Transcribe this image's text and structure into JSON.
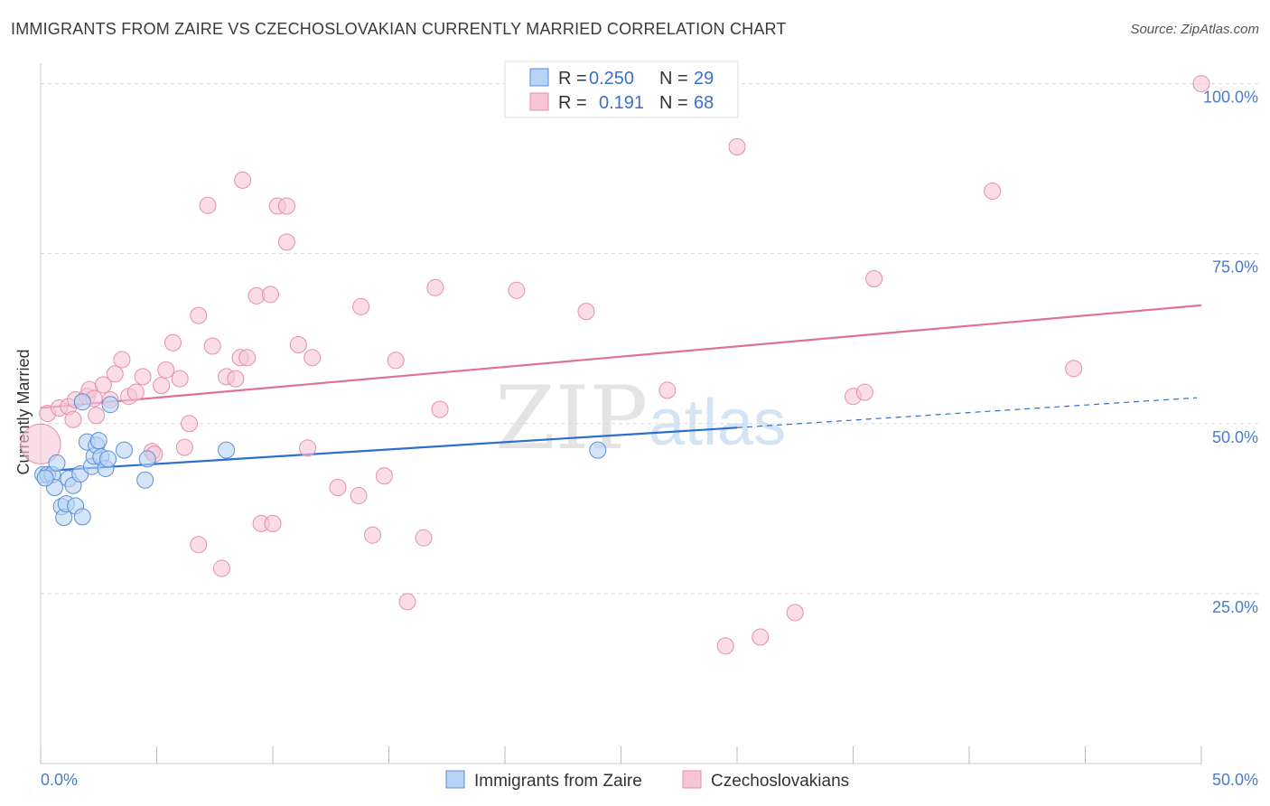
{
  "header": {
    "title": "IMMIGRANTS FROM ZAIRE VS CZECHOSLOVAKIAN CURRENTLY MARRIED CORRELATION CHART",
    "source": "Source: ZipAtlas.com"
  },
  "watermark": {
    "zip": "ZIP",
    "atlas": "atlas"
  },
  "colors": {
    "blue_fill": "#b8d3f3",
    "blue_stroke": "#5b8fd6",
    "blue_line": "#2c6fcd",
    "pink_fill": "#f7c6d6",
    "pink_stroke": "#e590ab",
    "pink_line": "#e0709a",
    "axis_label": "#4a7cc9",
    "grid": "#d8d8d8"
  },
  "legend": {
    "rows": [
      {
        "r_label": "R =",
        "r_value": "0.250",
        "n_label": "N =",
        "n_value": "29"
      },
      {
        "r_label": "R =",
        "r_value": "0.191",
        "n_label": "N =",
        "n_value": "68"
      }
    ]
  },
  "chart_data": {
    "type": "scatter",
    "title": "IMMIGRANTS FROM ZAIRE VS CZECHOSLOVAKIAN CURRENTLY MARRIED CORRELATION CHART",
    "xlabel": "",
    "ylabel": "Currently Married",
    "xlim": [
      0,
      50
    ],
    "ylim": [
      0,
      103
    ],
    "x_tick_labels": [
      "0.0%",
      "50.0%"
    ],
    "y_ticks": [
      25,
      50,
      75,
      100
    ],
    "y_tick_labels": [
      "25.0%",
      "50.0%",
      "75.0%",
      "100.0%"
    ],
    "grid": true,
    "series": [
      {
        "name": "Immigrants from Zaire",
        "color": "blue",
        "trend": {
          "x0": 0,
          "y0": 43.0,
          "x1": 30,
          "y1": 49.4,
          "dashed_to_x": 50,
          "dashed_to_y": 53.8
        },
        "points": [
          [
            0.1,
            42.5
          ],
          [
            0.3,
            42.5
          ],
          [
            0.5,
            42.5
          ],
          [
            0.6,
            40.6
          ],
          [
            0.7,
            44.2
          ],
          [
            0.9,
            37.8
          ],
          [
            1.0,
            36.2
          ],
          [
            1.1,
            38.2
          ],
          [
            1.2,
            41.9
          ],
          [
            1.4,
            40.9
          ],
          [
            1.5,
            37.9
          ],
          [
            1.7,
            42.6
          ],
          [
            1.8,
            36.3
          ],
          [
            1.8,
            53.2
          ],
          [
            2.0,
            47.3
          ],
          [
            2.2,
            43.7
          ],
          [
            2.3,
            45.2
          ],
          [
            2.4,
            46.8
          ],
          [
            2.5,
            47.5
          ],
          [
            2.6,
            45.1
          ],
          [
            2.8,
            43.4
          ],
          [
            2.9,
            44.8
          ],
          [
            3.0,
            52.8
          ],
          [
            3.6,
            46.1
          ],
          [
            4.5,
            41.7
          ],
          [
            4.6,
            44.8
          ],
          [
            8.0,
            46.1
          ],
          [
            24.0,
            46.1
          ],
          [
            0.2,
            42.0
          ]
        ]
      },
      {
        "name": "Czechoslovakians",
        "color": "pink",
        "trend": {
          "x0": 0,
          "y0": 52.3,
          "x1": 50,
          "y1": 67.4
        },
        "points": [
          [
            0.0,
            47.0
          ],
          [
            0.3,
            51.5
          ],
          [
            0.8,
            52.3
          ],
          [
            1.2,
            52.5
          ],
          [
            1.5,
            53.5
          ],
          [
            1.4,
            50.6
          ],
          [
            2.0,
            54.0
          ],
          [
            2.1,
            55.0
          ],
          [
            2.3,
            53.7
          ],
          [
            2.4,
            51.2
          ],
          [
            2.7,
            55.7
          ],
          [
            3.0,
            53.5
          ],
          [
            3.2,
            57.3
          ],
          [
            3.5,
            59.4
          ],
          [
            3.8,
            54.0
          ],
          [
            4.1,
            54.6
          ],
          [
            4.4,
            56.9
          ],
          [
            4.8,
            45.9
          ],
          [
            4.9,
            45.5
          ],
          [
            5.2,
            55.6
          ],
          [
            5.4,
            57.9
          ],
          [
            5.7,
            61.9
          ],
          [
            6.0,
            56.6
          ],
          [
            6.2,
            46.5
          ],
          [
            6.4,
            50.0
          ],
          [
            6.8,
            65.9
          ],
          [
            6.8,
            32.2
          ],
          [
            7.2,
            82.1
          ],
          [
            7.4,
            61.4
          ],
          [
            7.8,
            28.7
          ],
          [
            8.0,
            56.9
          ],
          [
            8.4,
            56.6
          ],
          [
            8.6,
            59.7
          ],
          [
            8.7,
            85.8
          ],
          [
            8.9,
            59.7
          ],
          [
            9.3,
            68.8
          ],
          [
            9.5,
            35.3
          ],
          [
            9.9,
            69.0
          ],
          [
            10.0,
            35.3
          ],
          [
            10.2,
            82.0
          ],
          [
            10.6,
            82.0
          ],
          [
            10.6,
            76.7
          ],
          [
            11.1,
            61.6
          ],
          [
            11.5,
            46.4
          ],
          [
            11.7,
            59.7
          ],
          [
            12.8,
            40.6
          ],
          [
            13.7,
            39.4
          ],
          [
            13.8,
            67.2
          ],
          [
            14.3,
            33.6
          ],
          [
            14.8,
            42.3
          ],
          [
            15.3,
            59.3
          ],
          [
            15.8,
            23.8
          ],
          [
            16.5,
            33.2
          ],
          [
            17.0,
            70.0
          ],
          [
            17.2,
            52.1
          ],
          [
            20.5,
            69.6
          ],
          [
            23.5,
            66.5
          ],
          [
            27.0,
            54.9
          ],
          [
            29.5,
            17.3
          ],
          [
            30.0,
            90.7
          ],
          [
            31.0,
            18.6
          ],
          [
            32.5,
            22.2
          ],
          [
            35.0,
            54.0
          ],
          [
            35.5,
            54.6
          ],
          [
            35.9,
            71.3
          ],
          [
            41.0,
            84.2
          ],
          [
            44.5,
            58.1
          ],
          [
            50.0,
            100.0
          ]
        ]
      }
    ]
  },
  "bottom_legend": {
    "items": [
      {
        "label": "Immigrants from Zaire",
        "color": "blue"
      },
      {
        "label": "Czechoslovakians",
        "color": "pink"
      }
    ]
  }
}
